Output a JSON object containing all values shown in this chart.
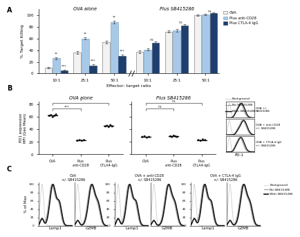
{
  "panel_A": {
    "title_left": "OVA alone",
    "title_right": "Plus SB415286",
    "ylabel": "% Target Killing",
    "xlabel": "Effector: target ratio",
    "xtick_labels": [
      "10:1",
      "25:1",
      "50:1",
      "10:1",
      "25:1",
      "50:1"
    ],
    "ylim": [
      0,
      110
    ],
    "yticks": [
      0,
      20,
      40,
      60,
      80,
      100
    ],
    "bar_groups": [
      {
        "ova": 10,
        "antiCD28": 26,
        "ctla4": 5,
        "ova_err": 1.5,
        "antiCD28_err": 2,
        "ctla4_err": 1
      },
      {
        "ova": 36,
        "antiCD28": 60,
        "ctla4": 14,
        "ova_err": 2,
        "antiCD28_err": 2,
        "ctla4_err": 1.5
      },
      {
        "ova": 54,
        "antiCD28": 88,
        "ctla4": 30,
        "ova_err": 2.5,
        "antiCD28_err": 2,
        "ctla4_err": 2
      },
      {
        "ova": 37,
        "antiCD28": 41,
        "ctla4": 52,
        "ova_err": 2,
        "antiCD28_err": 2,
        "ctla4_err": 3
      },
      {
        "ova": 72,
        "antiCD28": 74,
        "ctla4": 82,
        "ova_err": 2,
        "antiCD28_err": 2,
        "ctla4_err": 2
      },
      {
        "ova": 100,
        "antiCD28": 101,
        "ctla4": 103,
        "ova_err": 1,
        "antiCD28_err": 1.5,
        "ctla4_err": 1.5
      }
    ],
    "colors": [
      "#f2f2f2",
      "#a8c8e8",
      "#1e3f6e"
    ],
    "edge_colors": [
      "#666666",
      "#6699bb",
      "#1a3560"
    ],
    "legend_labels": [
      "OVA",
      "Plus anti-CD28",
      "Plus CTLA-4 IgG"
    ]
  },
  "panel_B": {
    "title_left": "OVA alone",
    "title_right": "Plus SB415286",
    "ylabel": "PD1 expression\nMFI (Geo Mean)",
    "ylim": [
      0,
      85
    ],
    "yticks": [
      0,
      20,
      40,
      60,
      80
    ],
    "groups_left": {
      "OVA": [
        62,
        63,
        60,
        62,
        64
      ],
      "Plus\nanti-CD28": [
        22,
        23,
        22,
        23
      ],
      "Plus\nCTLA4-IgG": [
        45,
        46,
        44,
        47,
        45
      ]
    },
    "groups_right": {
      "OVA": [
        28,
        29,
        27,
        28
      ],
      "Plus\nanti-CD28": [
        29,
        28,
        30,
        29,
        28
      ],
      "Plus\nCTLA4-IgG": [
        23,
        22,
        24,
        23
      ]
    },
    "dot_color": "#222222",
    "flow_legend": [
      "Background",
      "No SB415286",
      "With SB415286"
    ],
    "flow_colors": [
      "#cccccc",
      "#999999",
      "#111111"
    ],
    "flow_ls": [
      "-",
      "-",
      "-"
    ],
    "flow_lw": [
      0.6,
      0.8,
      1.0
    ],
    "flow_rows": [
      "OVA +/-\nSB415286",
      "OVA + anti-CD28\n+/- SB415286",
      "OVA + CTLA-4 IgG\n+/- SB415286"
    ],
    "pd1_label": "PD-1"
  },
  "panel_C": {
    "ylabel": "% of Max",
    "ylim": [
      0,
      105
    ],
    "yticks": [
      0,
      20,
      40,
      60,
      80,
      100
    ],
    "group_titles": [
      "OVA\n+/- SB415286",
      "OVA + anti-CD28\n+/- SB415286",
      "OVA + CTLA-4 IgG\n+/- SB415286"
    ],
    "marker_labels": [
      "Lamp1",
      "GZMB",
      "Lamp1",
      "GZMB",
      "Lamp1",
      "GZMB"
    ],
    "legend_labels": [
      "Background",
      "No SB415286",
      "With SB415286"
    ],
    "legend_colors": [
      "#cccccc",
      "#999999",
      "#111111"
    ],
    "legend_ls": [
      "-",
      "-",
      "-"
    ],
    "legend_lw": [
      0.6,
      0.8,
      1.2
    ]
  },
  "background_color": "#ffffff"
}
